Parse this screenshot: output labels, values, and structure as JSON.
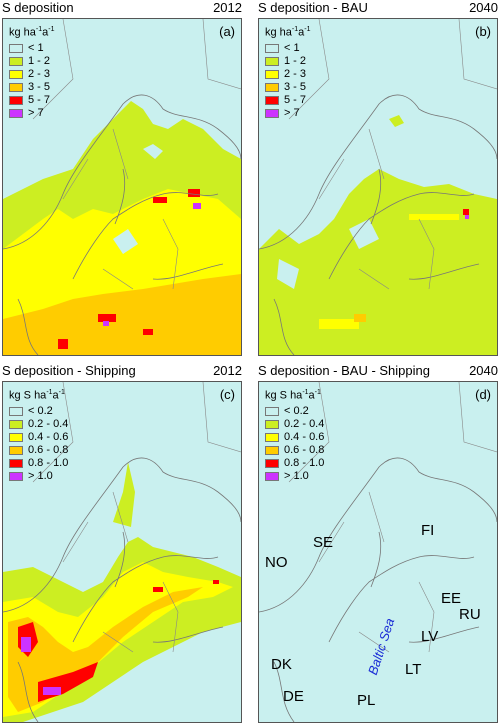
{
  "legend_colors": {
    "c0": "#c9f0ef",
    "c1": "#ccee22",
    "c2": "#ffff00",
    "c3": "#ffcc00",
    "c4": "#ff0000",
    "c5": "#cc33ff"
  },
  "panels": [
    {
      "title": "S deposition",
      "year": "2012",
      "label": "(a)",
      "legend_title": "kg  ha",
      "legend_unit_sup1": "-1",
      "legend_unit_mid": "a",
      "legend_unit_sup2": "-1",
      "legend": [
        "< 1",
        "1 - 2",
        "2 - 3",
        "3 - 5",
        "5 - 7",
        "> 7"
      ]
    },
    {
      "title": "S deposition - BAU",
      "year": "2040",
      "label": "(b)",
      "legend_title": "kg  ha",
      "legend_unit_sup1": "-1",
      "legend_unit_mid": "a",
      "legend_unit_sup2": "-1",
      "legend": [
        "< 1",
        "1 - 2",
        "2 - 3",
        "3 - 5",
        "5 - 7",
        "> 7"
      ]
    },
    {
      "title": "S deposition - Shipping",
      "year": "2012",
      "label": "(c)",
      "legend_title": "kg S ha",
      "legend_unit_sup1": "-1",
      "legend_unit_mid": "a",
      "legend_unit_sup2": "-1",
      "legend": [
        "< 0.2",
        "0.2 - 0.4",
        "0.4 - 0.6",
        "0.6 - 0.8",
        "0.8 - 1.0",
        "> 1.0"
      ]
    },
    {
      "title": "S deposition - BAU - Shipping",
      "year": "2040",
      "label": "(d)",
      "legend_title": "kg S ha",
      "legend_unit_sup1": "-1",
      "legend_unit_mid": "a",
      "legend_unit_sup2": "-1",
      "legend": [
        "< 0.2",
        "0.2 - 0.4",
        "0.4 - 0.6",
        "0.6 - 0.8",
        "0.8 - 1.0",
        "> 1.0"
      ]
    }
  ],
  "countries": [
    "NO",
    "SE",
    "FI",
    "EE",
    "RU",
    "LV",
    "LT",
    "DK",
    "DE",
    "PL"
  ],
  "sea_label": "Baltic Sea"
}
